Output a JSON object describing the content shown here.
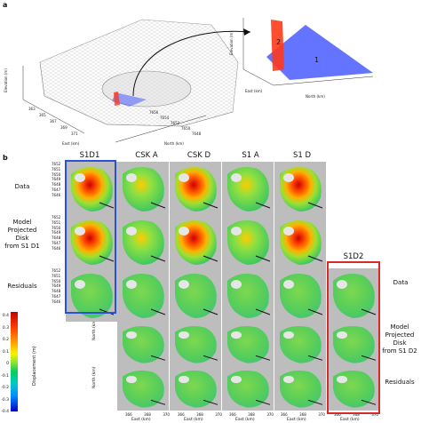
{
  "panel_a": {
    "letter": "a",
    "axes3d": {
      "elevation_label": "Elevation (m)",
      "east_label": "East (km)",
      "north_label": "North (km)",
      "east_ticks": [
        "363",
        "365",
        "367",
        "369",
        "371"
      ],
      "north_ticks": [
        "7656",
        "7654",
        "7652",
        "7650",
        "7648"
      ]
    },
    "inset": {
      "elevation_label": "Elevation (m)",
      "east_label": "East (km)",
      "north_label": "North (km)",
      "disk1": "1",
      "disk2": "2",
      "east_ticks": [
        "368",
        "369",
        "370"
      ],
      "north_ticks": [
        "7646",
        "7648",
        "7650"
      ]
    }
  },
  "panel_b": {
    "letter": "b",
    "columns": [
      "S1D1",
      "CSK A",
      "CSK D",
      "S1 A",
      "S1 D",
      "S1D2"
    ],
    "row_labels_left": [
      "Data",
      "Model\nProjected\nDisk\nfrom S1 D1",
      "Residuals"
    ],
    "row_labels_right": [
      "Data",
      "Model\nProjected\nDisk\nfrom S1 D2",
      "Residuals"
    ],
    "y_axis_label": "North (km)",
    "y_ticks": [
      "7652",
      "7651",
      "7650",
      "7649",
      "7648",
      "7647",
      "7646"
    ],
    "x_axis_label": "East (km)",
    "x_ticks": [
      "366",
      "368",
      "370"
    ],
    "colorbar": {
      "label": "Displacement (m)",
      "ticks": [
        "0.4",
        "0.3",
        "0.2",
        "0.1",
        "0",
        "-0.1",
        "-0.2",
        "-0.3",
        "-0.4"
      ]
    }
  },
  "colors": {
    "s1d1_frame": "#2a52d8",
    "s1d2_frame": "#d82a2a",
    "disk1": "#4a5cff",
    "disk2": "#ff3a1a"
  }
}
